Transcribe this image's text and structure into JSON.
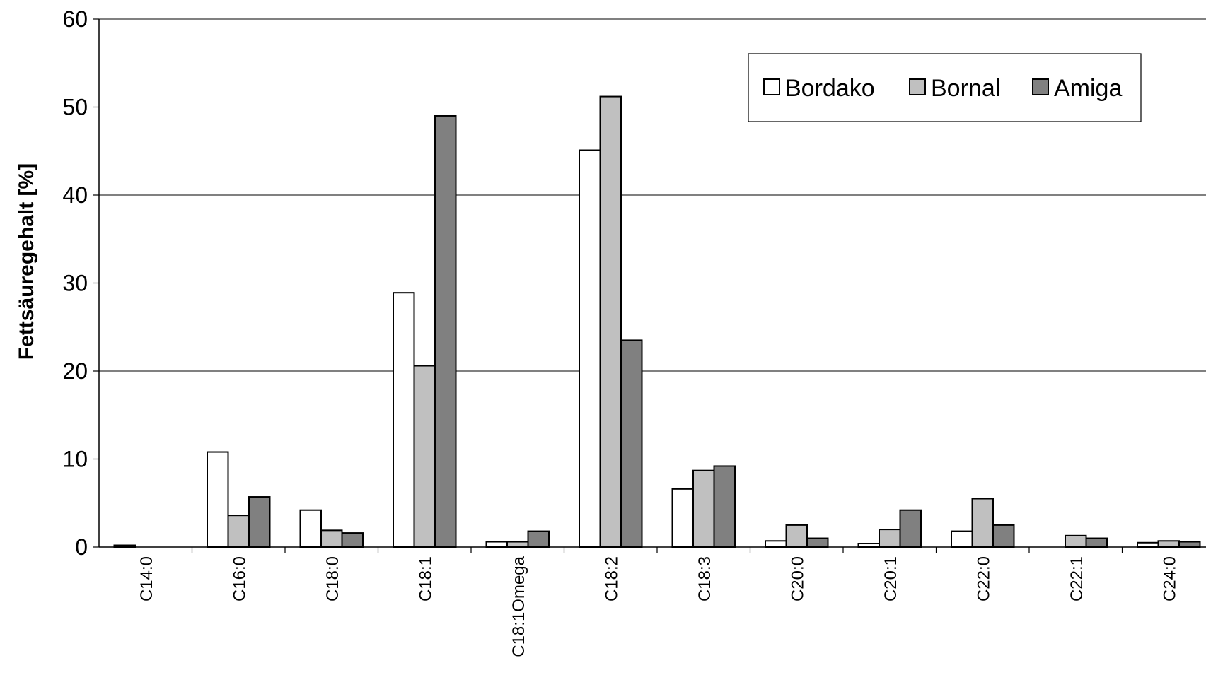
{
  "chart_data": {
    "type": "bar",
    "title": "",
    "xlabel": "",
    "ylabel": "Fettsäuregehalt [%]",
    "ylim": [
      0,
      60
    ],
    "yticks": [
      0,
      10,
      20,
      30,
      40,
      50,
      60
    ],
    "grid": true,
    "legend_position": "top-right",
    "categories": [
      "C14:0",
      "C16:0",
      "C18:0",
      "C18:1",
      "C18:1Omega",
      "C18:2",
      "C18:3",
      "C20:0",
      "C20:1",
      "C22:0",
      "C22:1",
      "C24:0"
    ],
    "series": [
      {
        "name": "Bordako",
        "color": "#ffffff",
        "values": [
          0.2,
          10.8,
          4.2,
          28.9,
          0.6,
          45.1,
          6.6,
          0.7,
          0.4,
          1.8,
          0.0,
          0.5
        ]
      },
      {
        "name": "Bornal",
        "color": "#c0c0c0",
        "values": [
          0.0,
          3.6,
          1.9,
          20.6,
          0.6,
          51.2,
          8.7,
          2.5,
          2.0,
          5.5,
          1.3,
          0.7
        ]
      },
      {
        "name": "Amiga",
        "color": "#808080",
        "values": [
          0.0,
          5.7,
          1.6,
          49.0,
          1.8,
          23.5,
          9.2,
          1.0,
          4.2,
          2.5,
          1.0,
          0.6
        ]
      }
    ]
  }
}
